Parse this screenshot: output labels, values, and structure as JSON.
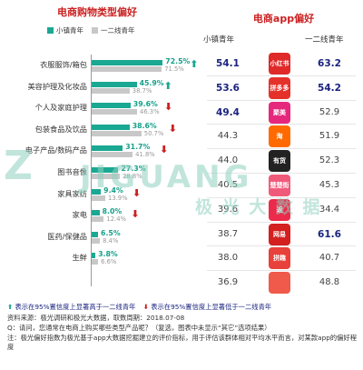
{
  "left_panel": {
    "title": "电商购物类型偏好",
    "legend": [
      {
        "label": "小镇青年",
        "color": "#1aa892"
      },
      {
        "label": "一二线青年",
        "color": "#c8c8c8"
      }
    ],
    "categories": [
      {
        "label": "衣服服饰/箱包",
        "town": "72.5%",
        "city": "71.5%",
        "mark": "up"
      },
      {
        "label": "美容护理及化妆品",
        "town": "45.9%",
        "city": "38.7%",
        "mark": "up"
      },
      {
        "label": "个人及家庭护理",
        "town": "39.6%",
        "city": "46.3%",
        "mark": "down"
      },
      {
        "label": "包装食品及饮品",
        "town": "38.6%",
        "city": "50.7%",
        "mark": "down"
      },
      {
        "label": "电子产品/数码产品",
        "town": "31.7%",
        "city": "41.8%",
        "mark": "down"
      },
      {
        "label": "图书音像",
        "town": "27.3%",
        "city": "28.8%",
        "mark": ""
      },
      {
        "label": "家具家纺",
        "town": "9.4%",
        "city": "13.9%",
        "mark": "down"
      },
      {
        "label": "家电",
        "town": "8.0%",
        "city": "12.4%",
        "mark": "down"
      },
      {
        "label": "医药/保健品",
        "town": "6.5%",
        "city": "8.4%",
        "mark": ""
      },
      {
        "label": "生鲜",
        "town": "3.8%",
        "city": "6.6%",
        "mark": ""
      }
    ]
  },
  "chart_data": {
    "type": "bar",
    "categories": [
      "衣服服饰/箱包",
      "美容护理及化妆品",
      "个人及家庭护理",
      "包装食品及饮品",
      "电子产品/数码产品",
      "图书音像",
      "家具家纺",
      "家电",
      "医药/保健品",
      "生鲜"
    ],
    "series": [
      {
        "name": "小镇青年",
        "values": [
          72.5,
          45.9,
          39.6,
          38.6,
          31.7,
          27.3,
          9.4,
          8.0,
          6.5,
          3.8
        ]
      },
      {
        "name": "一二线青年",
        "values": [
          71.5,
          38.7,
          46.3,
          50.7,
          41.8,
          28.8,
          13.9,
          12.4,
          8.4,
          6.6
        ]
      }
    ],
    "orientation": "horizontal"
  },
  "right_panel": {
    "title": "电商app偏好",
    "col_left": "小镇青年",
    "col_right": "一二线青年",
    "rows": [
      {
        "app": "小红书",
        "town": "54.1",
        "city": "63.2",
        "town_hi": true,
        "city_hi": true,
        "color": "#e02a2a"
      },
      {
        "app": "拼多多",
        "town": "53.6",
        "city": "54.2",
        "town_hi": true,
        "city_hi": true,
        "color": "#e4322b"
      },
      {
        "app": "聚美",
        "town": "49.4",
        "city": "52.9",
        "town_hi": true,
        "city_hi": false,
        "color": "#e5287c"
      },
      {
        "app": "淘",
        "town": "44.3",
        "city": "51.9",
        "town_hi": false,
        "city_hi": false,
        "color": "#ff6a00"
      },
      {
        "app": "有货",
        "town": "44.0",
        "city": "52.3",
        "town_hi": false,
        "city_hi": false,
        "color": "#222222"
      },
      {
        "app": "楚楚街",
        "town": "40.5",
        "city": "45.3",
        "town_hi": false,
        "city_hi": false,
        "color": "#f05a7a"
      },
      {
        "app": "返",
        "town": "39.6",
        "city": "34.4",
        "town_hi": false,
        "city_hi": false,
        "color": "#ec2a4a"
      },
      {
        "app": "网易",
        "town": "38.7",
        "city": "61.6",
        "town_hi": false,
        "city_hi": true,
        "color": "#d42020"
      },
      {
        "app": "拼趣",
        "town": "38.0",
        "city": "40.7",
        "town_hi": false,
        "city_hi": false,
        "color": "#e8403a"
      },
      {
        "app": "",
        "town": "36.9",
        "city": "48.8",
        "town_hi": false,
        "city_hi": false,
        "color": "#f05a4a"
      }
    ]
  },
  "watermark": {
    "brand": "JIGUANG",
    "cn": "极 光 大 数 据"
  },
  "footer": {
    "up_note": "表示在95%置信度上显著高于一二线青年",
    "down_note": "表示在95%置信度上显著低于一二线青年",
    "source": "资料来源：极光调研和极光大数据，取数周期：2018.07-08",
    "question": "Q：请问，您通常在电商上购买哪些类型产品呢？（复选，图表中未显示“其它”选项结果）",
    "note": "注：极光偏好指数为极光基于app大数据挖掘建立的评价指标，用于评估该群体相对平均水平而言，对某款app的偏好程度"
  }
}
